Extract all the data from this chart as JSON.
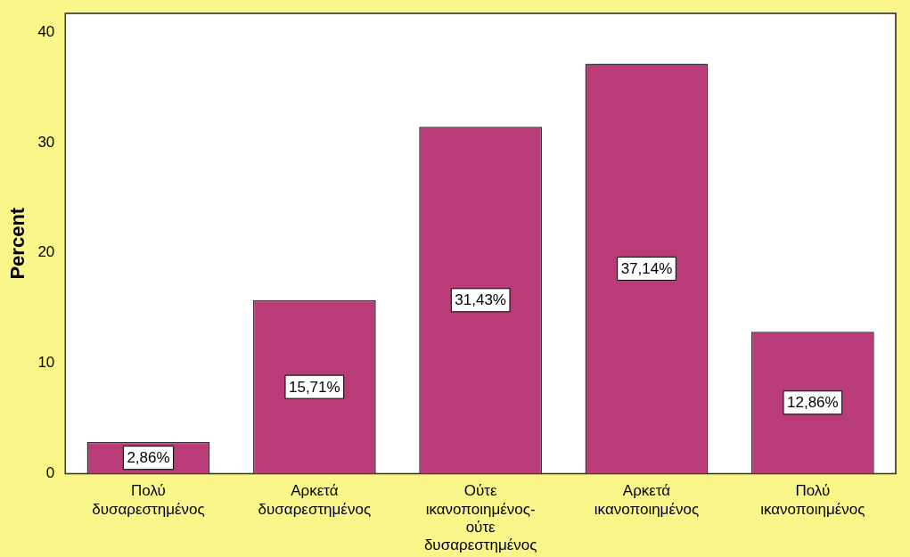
{
  "chart_data": {
    "type": "bar",
    "ylabel": "Percent",
    "categories": [
      "Πολύ δυσαρεστημένος",
      "Αρκετά δυσαρεστημένος",
      "Ούτε ικανοποιημένος- ούτε δυσαρεστημένος",
      "Αρκετά ικανοποιημένος",
      "Πολύ ικανοποιημένος"
    ],
    "values": [
      2.86,
      15.71,
      31.43,
      37.14,
      12.86
    ],
    "value_labels": [
      "2,86%",
      "15,71%",
      "31,43%",
      "37,14%",
      "12,86%"
    ],
    "color": "#b93c78",
    "ylim": [
      0,
      41.7
    ],
    "yticks": [
      0,
      10,
      20,
      30,
      40
    ],
    "grid": false,
    "legend": false
  }
}
